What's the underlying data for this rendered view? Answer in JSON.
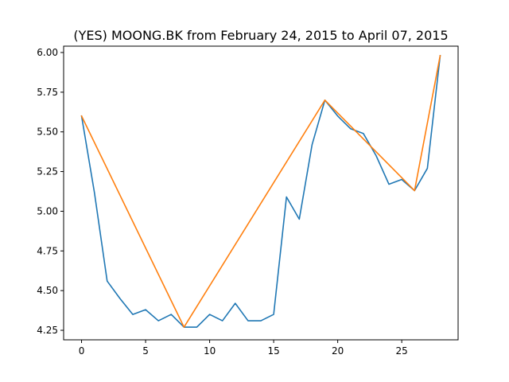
{
  "chart_data": {
    "type": "line",
    "title": "(YES) MOONG.BK from February 24, 2015 to April 07, 2015",
    "xlabel": "",
    "ylabel": "",
    "xlim": [
      -1.4,
      29.4
    ],
    "ylim": [
      4.19,
      6.04
    ],
    "grid": false,
    "xticks": [
      0,
      5,
      10,
      15,
      20,
      25
    ],
    "xtick_labels": [
      "0",
      "5",
      "10",
      "15",
      "20",
      "25"
    ],
    "yticks": [
      4.25,
      4.5,
      4.75,
      5.0,
      5.25,
      5.5,
      5.75,
      6.0
    ],
    "ytick_labels": [
      "4.25",
      "4.50",
      "4.75",
      "5.00",
      "5.25",
      "5.50",
      "5.75",
      "6.00"
    ],
    "series": [
      {
        "color": "#1f77b4",
        "x": [
          0,
          1,
          2,
          3,
          4,
          5,
          6,
          7,
          8,
          9,
          10,
          11,
          12,
          13,
          14,
          15,
          16,
          17,
          18,
          19,
          20,
          21,
          22,
          23,
          24,
          25,
          26,
          27,
          28
        ],
        "values": [
          5.6,
          5.12,
          4.56,
          4.45,
          4.35,
          4.38,
          4.31,
          4.35,
          4.27,
          4.27,
          4.35,
          4.31,
          4.42,
          4.31,
          4.31,
          4.35,
          5.09,
          4.95,
          5.42,
          5.7,
          5.6,
          5.52,
          5.49,
          5.35,
          5.17,
          5.2,
          5.13,
          5.27,
          5.98
        ]
      },
      {
        "color": "#ff7f0e",
        "x": [
          0,
          8,
          19,
          26,
          28
        ],
        "values": [
          5.6,
          4.27,
          5.7,
          5.13,
          5.98
        ]
      }
    ]
  }
}
